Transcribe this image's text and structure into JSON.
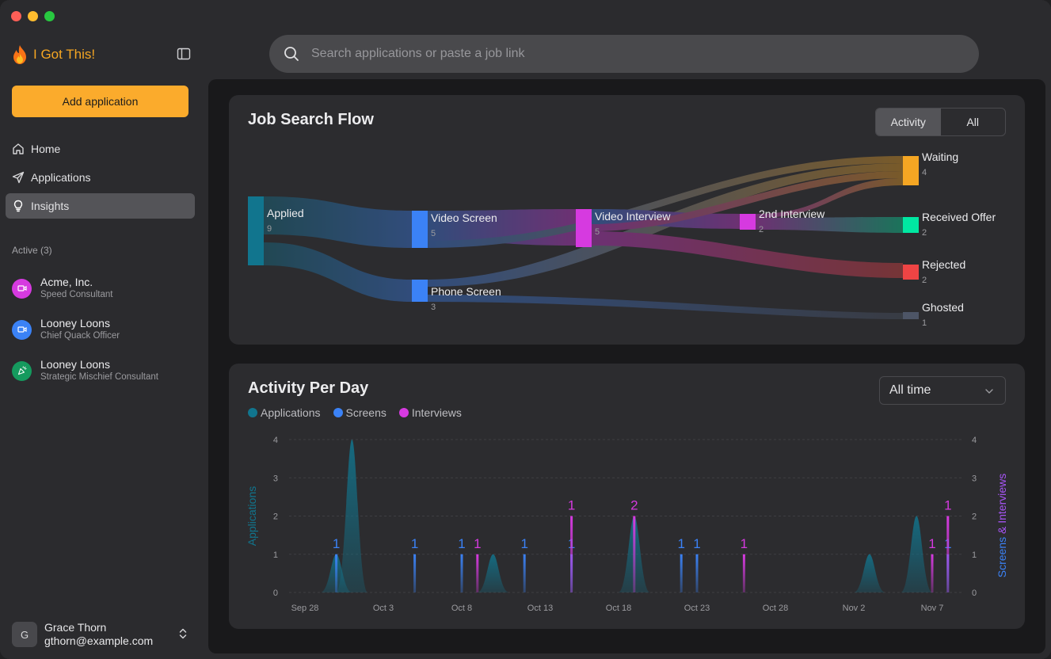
{
  "app": {
    "name": "I Got This!"
  },
  "sidebar": {
    "add_button": "Add application",
    "nav": [
      {
        "label": "Home",
        "icon": "home-icon"
      },
      {
        "label": "Applications",
        "icon": "send-icon"
      },
      {
        "label": "Insights",
        "icon": "lightbulb-icon",
        "active": true
      }
    ],
    "active_label": "Active (3)",
    "applications": [
      {
        "company": "Acme, Inc.",
        "role": "Speed Consultant",
        "color": "#d63ae0",
        "icon": "video-icon"
      },
      {
        "company": "Looney Loons",
        "role": "Chief Quack Officer",
        "color": "#3b82f6",
        "icon": "video-icon"
      },
      {
        "company": "Looney Loons",
        "role": "Strategic Mischief Consultant",
        "color": "#159a5e",
        "icon": "party-icon"
      }
    ],
    "user": {
      "initial": "G",
      "name": "Grace Thorn",
      "email": "gthorn@example.com"
    }
  },
  "search": {
    "placeholder": "Search applications or paste a job link"
  },
  "flow": {
    "title": "Job Search Flow",
    "toggle": {
      "activity": "Activity",
      "all": "All",
      "selected": "Activity"
    },
    "nodes": [
      {
        "id": "applied",
        "label": "Applied",
        "count": "9",
        "color": "#11758e"
      },
      {
        "id": "video_screen",
        "label": "Video Screen",
        "count": "5",
        "color": "#3b82f6"
      },
      {
        "id": "phone_screen",
        "label": "Phone Screen",
        "count": "3",
        "color": "#3b82f6"
      },
      {
        "id": "video_interview",
        "label": "Video Interview",
        "count": "5",
        "color": "#d63ae0"
      },
      {
        "id": "second_interview",
        "label": "2nd Interview",
        "count": "2",
        "color": "#d63ae0"
      },
      {
        "id": "waiting",
        "label": "Waiting",
        "count": "4",
        "color": "#f5a623"
      },
      {
        "id": "received_offer",
        "label": "Received Offer",
        "count": "2",
        "color": "#00e8a2"
      },
      {
        "id": "rejected",
        "label": "Rejected",
        "count": "2",
        "color": "#ef4444"
      },
      {
        "id": "ghosted",
        "label": "Ghosted",
        "count": "1",
        "color": "#4d5566"
      }
    ]
  },
  "activity": {
    "title": "Activity Per Day",
    "range": "All time",
    "colors": {
      "applications": "#11758e",
      "screens": "#3b82f6",
      "interviews": "#d63ae0"
    }
  },
  "chart_data": {
    "type": "area",
    "legend": [
      "Applications",
      "Screens",
      "Interviews"
    ],
    "ylabel_left": "Applications",
    "ylabel_right": "Screens & Interviews",
    "ylim": [
      0,
      4
    ],
    "yticks": [
      "0",
      "1",
      "2",
      "3",
      "4"
    ],
    "xticks": [
      "Sep 28",
      "Oct 3",
      "Oct 8",
      "Oct 13",
      "Oct 18",
      "Oct 23",
      "Oct 28",
      "Nov 2",
      "Nov 7"
    ],
    "applications": [
      {
        "x": "Sep 30",
        "y": 1
      },
      {
        "x": "Oct 1",
        "y": 4
      },
      {
        "x": "Oct 10",
        "y": 1
      },
      {
        "x": "Oct 19",
        "y": 2
      },
      {
        "x": "Nov 3",
        "y": 1
      },
      {
        "x": "Nov 6",
        "y": 2
      }
    ],
    "screens": [
      {
        "x": "Sep 30",
        "y": 1,
        "label": "1"
      },
      {
        "x": "Oct 5",
        "y": 1,
        "label": "1"
      },
      {
        "x": "Oct 8",
        "y": 1,
        "label": "1"
      },
      {
        "x": "Oct 12",
        "y": 1,
        "label": "1"
      },
      {
        "x": "Oct 15",
        "y": 1,
        "label": "1"
      },
      {
        "x": "Oct 22",
        "y": 1,
        "label": "1"
      },
      {
        "x": "Oct 23",
        "y": 1,
        "label": "1"
      },
      {
        "x": "Nov 8",
        "y": 1,
        "label": "1"
      }
    ],
    "interviews": [
      {
        "x": "Oct 9",
        "y": 1,
        "label": "1"
      },
      {
        "x": "Oct 15",
        "y": 2,
        "label": "1"
      },
      {
        "x": "Oct 19",
        "y": 2,
        "label": "2"
      },
      {
        "x": "Oct 26",
        "y": 1,
        "label": "1"
      },
      {
        "x": "Nov 7",
        "y": 1,
        "label": "1"
      },
      {
        "x": "Nov 8",
        "y": 2,
        "label": "1"
      }
    ]
  }
}
